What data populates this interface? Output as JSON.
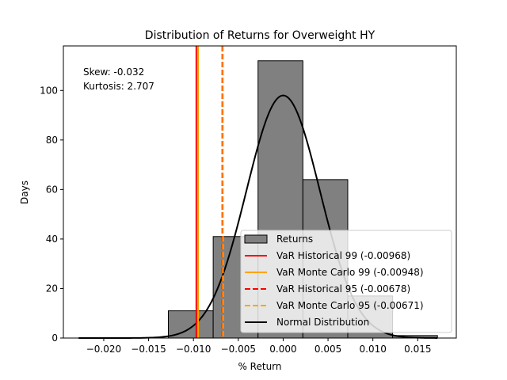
{
  "chart_data": {
    "type": "bar",
    "title": "Distribution of Returns for Overweight HY",
    "xlabel": "% Return",
    "ylabel": "Days",
    "xlim": [
      -0.0245,
      0.0193
    ],
    "ylim": [
      0,
      118
    ],
    "x_ticks": [
      -0.02,
      -0.015,
      -0.01,
      -0.005,
      0.0,
      0.005,
      0.01,
      0.015
    ],
    "x_tick_labels": [
      "−0.020",
      "−0.015",
      "−0.010",
      "−0.005",
      "0.000",
      "0.005",
      "0.010",
      "0.015"
    ],
    "y_ticks": [
      0,
      20,
      40,
      60,
      80,
      100
    ],
    "y_tick_labels": [
      "0",
      "20",
      "40",
      "60",
      "80",
      "100"
    ],
    "grid": false,
    "legend_position": "lower-right",
    "stats": {
      "skew": "Skew: -0.032",
      "kurtosis": "Kurtosis: 2.707"
    },
    "histogram": {
      "name": "Returns",
      "color": "#808080",
      "edge_color": "#000000",
      "bins": [
        {
          "x0": -0.0228,
          "x1": -0.0178,
          "count": 0
        },
        {
          "x0": -0.0178,
          "x1": -0.0128,
          "count": 0
        },
        {
          "x0": -0.0128,
          "x1": -0.0078,
          "count": 11
        },
        {
          "x0": -0.0078,
          "x1": -0.0028,
          "count": 41
        },
        {
          "x0": -0.0028,
          "x1": 0.0022,
          "count": 112
        },
        {
          "x0": 0.0022,
          "x1": 0.0072,
          "count": 64
        },
        {
          "x0": 0.0072,
          "x1": 0.0122,
          "count": 17
        },
        {
          "x0": 0.0122,
          "x1": 0.0172,
          "count": 1
        }
      ]
    },
    "normal_curve": {
      "name": "Normal Distribution",
      "color": "#000000",
      "x_min": -0.0228,
      "x_max": 0.0172,
      "mean": 0.0,
      "std": 0.0041,
      "peak": 98
    },
    "var_lines": [
      {
        "name": "VaR Historical 99 (-0.00968)",
        "x": -0.00968,
        "color": "#ff0000",
        "dashed": false
      },
      {
        "name": "VaR Monte Carlo 99 (-0.00948)",
        "x": -0.00948,
        "color": "#ffa500",
        "dashed": false
      },
      {
        "name": "VaR Historical 95 (-0.00678)",
        "x": -0.00678,
        "color": "#ff0000",
        "dashed": true
      },
      {
        "name": "VaR Monte Carlo 95 (-0.00671)",
        "x": -0.00671,
        "color": "#ffa500",
        "dashed": true
      }
    ]
  }
}
